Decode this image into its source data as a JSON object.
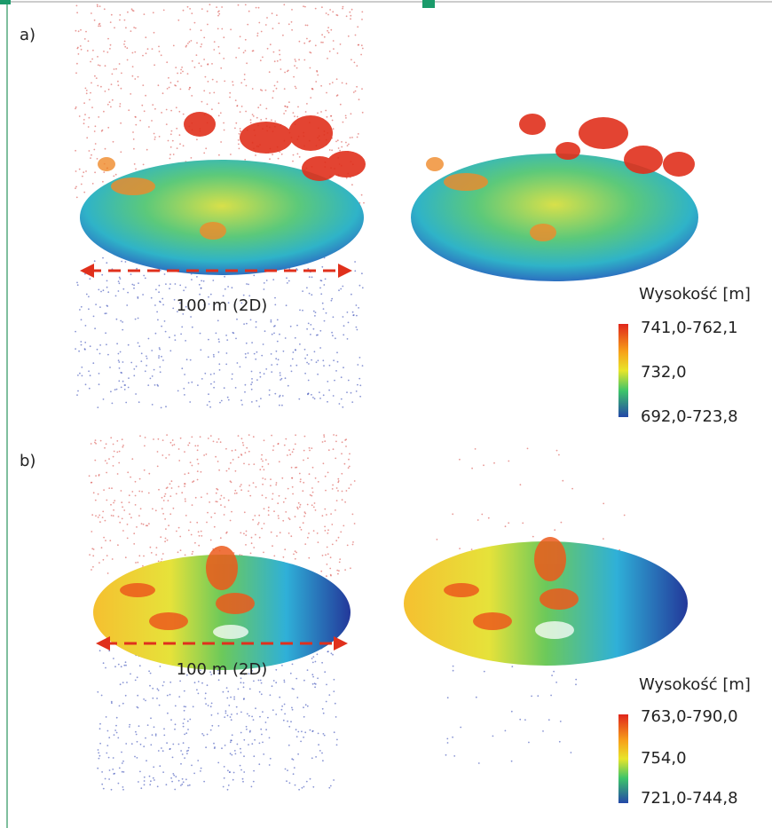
{
  "panels": [
    {
      "label": "a)",
      "scale_label": "100 m (2D)",
      "legend": {
        "title": "Wysokość [m]",
        "labels": [
          "741,0-762,1",
          "732,0",
          "692,0-723,8"
        ]
      }
    },
    {
      "label": "b)",
      "scale_label": "100 m (2D)",
      "legend": {
        "title": "Wysokość [m]",
        "labels": [
          "763,0-790,0",
          "754,0",
          "721,0-744,8"
        ]
      }
    }
  ]
}
